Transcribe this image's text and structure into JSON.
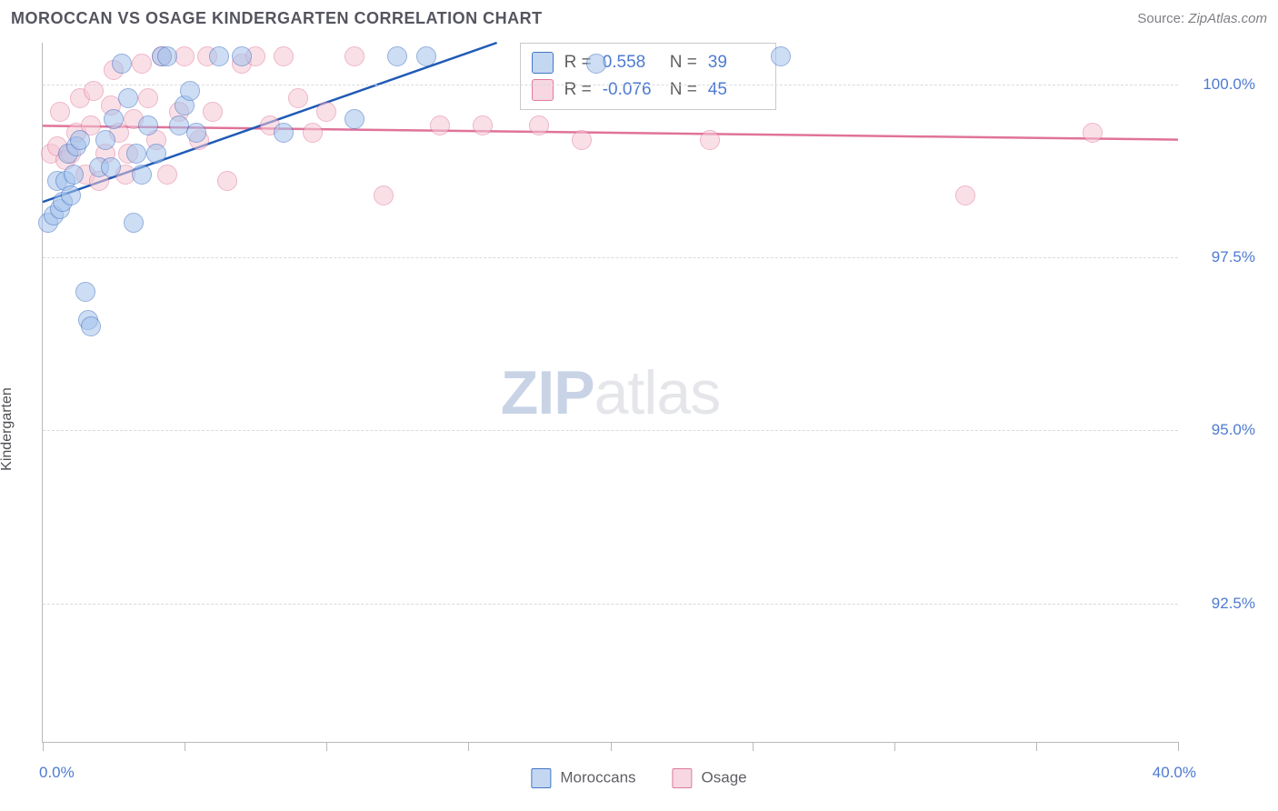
{
  "header": {
    "title": "MOROCCAN VS OSAGE KINDERGARTEN CORRELATION CHART",
    "source_label": "Source:",
    "source_value": "ZipAtlas.com"
  },
  "chart": {
    "type": "scatter",
    "ylabel": "Kindergarten",
    "xlim": [
      0,
      40
    ],
    "ylim": [
      90.5,
      100.6
    ],
    "xticks": [
      0,
      5,
      10,
      15,
      20,
      25,
      30,
      35,
      40
    ],
    "xtick_labels_shown": {
      "start": "0.0%",
      "end": "40.0%"
    },
    "yticks": [
      92.5,
      95.0,
      97.5,
      100.0
    ],
    "ytick_labels": [
      "92.5%",
      "95.0%",
      "97.5%",
      "100.0%"
    ],
    "grid_color": "#d9dade",
    "axis_color": "#b8b9be",
    "background_color": "#ffffff",
    "watermark": {
      "text_a": "ZIP",
      "text_b": "atlas"
    },
    "series": {
      "moroccans": {
        "label": "Moroccans",
        "marker_color_fill": "#a5c2ec",
        "marker_color_border": "#3b6fc2",
        "marker_radius_px": 11,
        "line_color": "#1f5ab5",
        "line_width": 2.5,
        "R": "0.558",
        "N": "39",
        "fit": {
          "x1": 0,
          "y1": 98.3,
          "x2": 16,
          "y2": 100.6
        },
        "points": [
          [
            0.2,
            98.0
          ],
          [
            0.4,
            98.1
          ],
          [
            0.5,
            98.6
          ],
          [
            0.6,
            98.2
          ],
          [
            0.7,
            98.3
          ],
          [
            0.8,
            98.6
          ],
          [
            0.9,
            99.0
          ],
          [
            1.0,
            98.4
          ],
          [
            1.1,
            98.7
          ],
          [
            1.2,
            99.1
          ],
          [
            1.3,
            99.2
          ],
          [
            1.5,
            97.0
          ],
          [
            1.6,
            96.6
          ],
          [
            1.7,
            96.5
          ],
          [
            2.0,
            98.8
          ],
          [
            2.2,
            99.2
          ],
          [
            2.4,
            98.8
          ],
          [
            2.5,
            99.5
          ],
          [
            2.8,
            100.3
          ],
          [
            3.0,
            99.8
          ],
          [
            3.2,
            98.0
          ],
          [
            3.3,
            99.0
          ],
          [
            3.5,
            98.7
          ],
          [
            3.7,
            99.4
          ],
          [
            4.0,
            99.0
          ],
          [
            4.2,
            100.4
          ],
          [
            4.4,
            100.4
          ],
          [
            4.8,
            99.4
          ],
          [
            5.0,
            99.7
          ],
          [
            5.2,
            99.9
          ],
          [
            5.4,
            99.3
          ],
          [
            6.2,
            100.4
          ],
          [
            7.0,
            100.4
          ],
          [
            8.5,
            99.3
          ],
          [
            11.0,
            99.5
          ],
          [
            12.5,
            100.4
          ],
          [
            13.5,
            100.4
          ],
          [
            19.5,
            100.3
          ],
          [
            26.0,
            100.4
          ]
        ]
      },
      "osage": {
        "label": "Osage",
        "marker_color_fill": "#f5c7d4",
        "marker_color_border": "#e27a9c",
        "marker_radius_px": 11,
        "line_color": "#e0739a",
        "line_width": 2.5,
        "R": "-0.076",
        "N": "45",
        "fit": {
          "x1": 0,
          "y1": 99.4,
          "x2": 40,
          "y2": 99.2
        },
        "points": [
          [
            0.3,
            99.0
          ],
          [
            0.5,
            99.1
          ],
          [
            0.6,
            99.6
          ],
          [
            0.8,
            98.9
          ],
          [
            1.0,
            99.0
          ],
          [
            1.2,
            99.3
          ],
          [
            1.3,
            99.8
          ],
          [
            1.5,
            98.7
          ],
          [
            1.7,
            99.4
          ],
          [
            1.8,
            99.9
          ],
          [
            2.0,
            98.6
          ],
          [
            2.2,
            99.0
          ],
          [
            2.4,
            99.7
          ],
          [
            2.5,
            100.2
          ],
          [
            2.7,
            99.3
          ],
          [
            2.9,
            98.7
          ],
          [
            3.0,
            99.0
          ],
          [
            3.2,
            99.5
          ],
          [
            3.5,
            100.3
          ],
          [
            3.7,
            99.8
          ],
          [
            4.0,
            99.2
          ],
          [
            4.2,
            100.4
          ],
          [
            4.4,
            98.7
          ],
          [
            4.8,
            99.6
          ],
          [
            5.0,
            100.4
          ],
          [
            5.5,
            99.2
          ],
          [
            5.8,
            100.4
          ],
          [
            6.0,
            99.6
          ],
          [
            6.5,
            98.6
          ],
          [
            7.0,
            100.3
          ],
          [
            7.5,
            100.4
          ],
          [
            8.0,
            99.4
          ],
          [
            8.5,
            100.4
          ],
          [
            9.0,
            99.8
          ],
          [
            9.5,
            99.3
          ],
          [
            10.0,
            99.6
          ],
          [
            11.0,
            100.4
          ],
          [
            12.0,
            98.4
          ],
          [
            14.0,
            99.4
          ],
          [
            15.5,
            99.4
          ],
          [
            17.5,
            99.4
          ],
          [
            19.0,
            99.2
          ],
          [
            23.5,
            99.2
          ],
          [
            32.5,
            98.4
          ],
          [
            37.0,
            99.3
          ]
        ]
      }
    },
    "legend_top": {
      "R_label": "R =",
      "N_label": "N ="
    },
    "legend_bottom": [
      "Moroccans",
      "Osage"
    ]
  },
  "colors": {
    "label_blue": "#4e7bd1",
    "text_gray": "#555560"
  }
}
